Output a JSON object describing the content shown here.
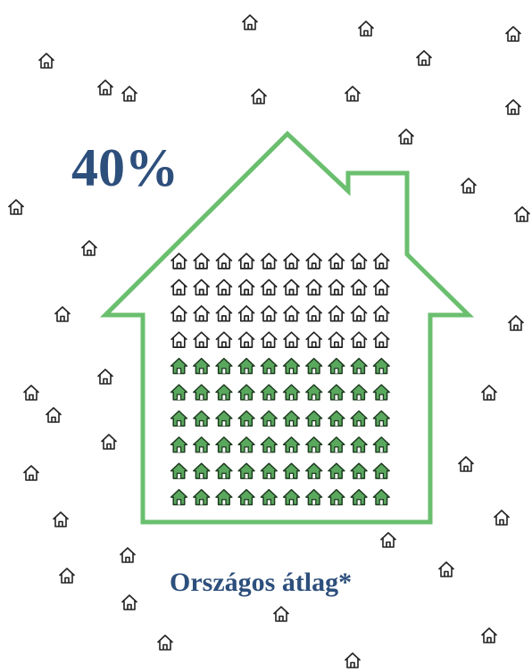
{
  "chart_data": {
    "type": "waffle",
    "values": [
      40
    ],
    "value_labels": [
      "40%"
    ],
    "caption": "Országos átlag*",
    "color": "#5aa85e",
    "outline_color": "#6abf6e"
  }
}
